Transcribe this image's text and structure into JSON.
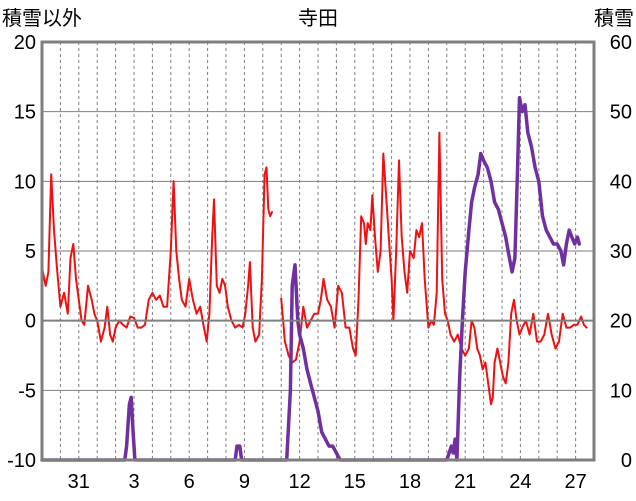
{
  "chart_data": {
    "type": "line",
    "title": "寺田",
    "ylabel_left": "積雪以外",
    "ylabel_right": "積雪",
    "ylim_left": [
      -10,
      20
    ],
    "ylim_right": [
      0,
      60
    ],
    "yticks_left": [
      "20",
      "15",
      "10",
      "5",
      "0",
      "-5",
      "-10"
    ],
    "yticks_right": [
      "60",
      "50",
      "40",
      "30",
      "20",
      "10",
      "0"
    ],
    "xlim": [
      0,
      30
    ],
    "xticks": [
      {
        "day": 2.0,
        "label": "31"
      },
      {
        "day": 5.0,
        "label": "3"
      },
      {
        "day": 8.0,
        "label": "6"
      },
      {
        "day": 11.0,
        "label": "9"
      },
      {
        "day": 14.0,
        "label": "12"
      },
      {
        "day": 17.0,
        "label": "15"
      },
      {
        "day": 20.0,
        "label": "18"
      },
      {
        "day": 23.0,
        "label": "21"
      },
      {
        "day": 26.0,
        "label": "24"
      },
      {
        "day": 29.0,
        "label": "27"
      }
    ],
    "grid": true,
    "legend": "none",
    "colors": {
      "series1": "#ee1111",
      "series2": "#7030a0",
      "zero": "#7f7f7f",
      "frame": "#7f7f7f",
      "grid": "#7f7f7f"
    },
    "series": [
      {
        "axis": "left",
        "color": "#ee1111",
        "points": [
          [
            0.0,
            3.8
          ],
          [
            0.2,
            2.5
          ],
          [
            0.35,
            3.5
          ],
          [
            0.5,
            10.5
          ],
          [
            0.65,
            6.5
          ],
          [
            0.8,
            4.0
          ],
          [
            1.0,
            1.0
          ],
          [
            1.2,
            2.0
          ],
          [
            1.4,
            0.5
          ],
          [
            1.55,
            4.5
          ],
          [
            1.7,
            5.5
          ],
          [
            1.85,
            3.0
          ],
          [
            2.0,
            1.5
          ],
          [
            2.15,
            0.0
          ],
          [
            2.3,
            -0.3
          ],
          [
            2.5,
            2.5
          ],
          [
            2.7,
            1.5
          ],
          [
            2.85,
            0.5
          ],
          [
            3.0,
            0.0
          ],
          [
            3.2,
            -1.5
          ],
          [
            3.4,
            -0.5
          ],
          [
            3.55,
            1.0
          ],
          [
            3.7,
            -1.0
          ],
          [
            3.85,
            -1.5
          ],
          [
            4.0,
            -0.5
          ],
          [
            4.2,
            0.0
          ],
          [
            4.4,
            -0.3
          ],
          [
            4.6,
            -0.5
          ],
          [
            4.8,
            0.3
          ],
          [
            5.0,
            0.2
          ],
          [
            5.2,
            -0.5
          ],
          [
            5.4,
            -0.5
          ],
          [
            5.6,
            -0.3
          ],
          [
            5.8,
            1.5
          ],
          [
            6.0,
            2.0
          ],
          [
            6.2,
            1.5
          ],
          [
            6.4,
            1.8
          ],
          [
            6.6,
            1.0
          ],
          [
            6.8,
            1.0
          ],
          [
            7.0,
            5.0
          ],
          [
            7.15,
            10.0
          ],
          [
            7.3,
            5.0
          ],
          [
            7.45,
            3.0
          ],
          [
            7.6,
            1.5
          ],
          [
            7.8,
            1.0
          ],
          [
            8.0,
            3.0
          ],
          [
            8.2,
            1.5
          ],
          [
            8.4,
            0.5
          ],
          [
            8.6,
            1.0
          ],
          [
            8.8,
            -0.5
          ],
          [
            8.95,
            -1.5
          ],
          [
            9.1,
            0.5
          ],
          [
            9.25,
            6.0
          ],
          [
            9.35,
            8.7
          ],
          [
            9.5,
            2.5
          ],
          [
            9.65,
            2.0
          ],
          [
            9.8,
            3.0
          ],
          [
            9.95,
            2.5
          ],
          [
            10.1,
            1.0
          ],
          [
            10.3,
            0.0
          ],
          [
            10.5,
            -0.5
          ],
          [
            10.7,
            -0.3
          ],
          [
            10.9,
            -0.5
          ],
          [
            11.05,
            0.5
          ],
          [
            11.2,
            2.5
          ],
          [
            11.3,
            4.2
          ],
          [
            11.45,
            -0.5
          ],
          [
            11.6,
            -1.5
          ],
          [
            11.8,
            -1.0
          ],
          [
            11.95,
            3.0
          ],
          [
            12.1,
            10.5
          ],
          [
            12.2,
            11.0
          ],
          [
            12.3,
            8.0
          ],
          [
            12.4,
            7.5
          ],
          [
            12.5,
            7.8
          ]
        ]
      },
      {
        "axis": "left",
        "color": "#ee1111",
        "points": [
          [
            13.0,
            1.6
          ],
          [
            13.2,
            -1.5
          ],
          [
            13.4,
            -2.5
          ],
          [
            13.6,
            -3.0
          ],
          [
            13.8,
            -2.8
          ],
          [
            14.0,
            -1.5
          ],
          [
            14.2,
            1.0
          ],
          [
            14.4,
            -0.5
          ],
          [
            14.6,
            0.0
          ],
          [
            14.8,
            0.5
          ],
          [
            15.0,
            0.5
          ],
          [
            15.15,
            1.5
          ],
          [
            15.3,
            3.0
          ],
          [
            15.5,
            1.5
          ],
          [
            15.7,
            1.0
          ],
          [
            15.9,
            -0.5
          ],
          [
            16.1,
            2.5
          ],
          [
            16.3,
            2.0
          ],
          [
            16.5,
            -0.5
          ],
          [
            16.7,
            -0.5
          ],
          [
            16.9,
            -2.0
          ],
          [
            17.05,
            -2.5
          ],
          [
            17.2,
            1.5
          ],
          [
            17.35,
            7.5
          ],
          [
            17.5,
            7.0
          ],
          [
            17.6,
            5.5
          ],
          [
            17.7,
            7.0
          ],
          [
            17.85,
            6.5
          ],
          [
            17.95,
            9.0
          ],
          [
            18.1,
            6.0
          ],
          [
            18.25,
            3.5
          ],
          [
            18.4,
            5.0
          ],
          [
            18.55,
            12.0
          ],
          [
            18.7,
            9.0
          ],
          [
            18.85,
            6.0
          ],
          [
            19.0,
            3.0
          ],
          [
            19.1,
            0.0
          ],
          [
            19.25,
            5.0
          ],
          [
            19.4,
            11.5
          ],
          [
            19.55,
            6.0
          ],
          [
            19.7,
            3.5
          ],
          [
            19.85,
            2.0
          ],
          [
            20.0,
            5.0
          ],
          [
            20.2,
            4.5
          ],
          [
            20.35,
            6.5
          ],
          [
            20.5,
            6.0
          ],
          [
            20.65,
            7.0
          ],
          [
            20.8,
            3.0
          ],
          [
            21.0,
            -0.5
          ],
          [
            21.15,
            0.0
          ],
          [
            21.3,
            -0.3
          ],
          [
            21.45,
            2.0
          ],
          [
            21.6,
            13.5
          ],
          [
            21.75,
            3.0
          ],
          [
            21.9,
            0.5
          ],
          [
            22.05,
            0.0
          ],
          [
            22.2,
            -1.0
          ],
          [
            22.4,
            -1.5
          ],
          [
            22.6,
            -1.0
          ],
          [
            22.8,
            -2.0
          ],
          [
            23.0,
            -2.5
          ],
          [
            23.2,
            -2.0
          ],
          [
            23.35,
            0.0
          ],
          [
            23.5,
            -0.5
          ],
          [
            23.65,
            -2.0
          ],
          [
            23.8,
            -2.5
          ],
          [
            23.95,
            -3.5
          ],
          [
            24.1,
            -3.0
          ],
          [
            24.25,
            -4.5
          ],
          [
            24.4,
            -6.0
          ],
          [
            24.5,
            -5.5
          ],
          [
            24.6,
            -3.0
          ],
          [
            24.75,
            -2.0
          ],
          [
            24.9,
            -3.0
          ],
          [
            25.05,
            -4.0
          ],
          [
            25.2,
            -4.5
          ],
          [
            25.35,
            -3.0
          ],
          [
            25.5,
            0.5
          ],
          [
            25.65,
            1.5
          ],
          [
            25.8,
            0.0
          ],
          [
            25.95,
            -1.0
          ],
          [
            26.1,
            -0.5
          ],
          [
            26.3,
            0.0
          ],
          [
            26.5,
            -1.0
          ],
          [
            26.7,
            0.5
          ],
          [
            26.9,
            -1.5
          ],
          [
            27.1,
            -1.5
          ],
          [
            27.3,
            -1.0
          ],
          [
            27.5,
            0.5
          ],
          [
            27.7,
            -1.0
          ],
          [
            27.9,
            -2.0
          ],
          [
            28.1,
            -1.5
          ],
          [
            28.3,
            0.5
          ],
          [
            28.5,
            -0.5
          ],
          [
            28.7,
            -0.5
          ],
          [
            28.9,
            -0.3
          ],
          [
            29.1,
            -0.3
          ],
          [
            29.3,
            0.3
          ],
          [
            29.45,
            -0.3
          ],
          [
            29.6,
            -0.5
          ]
        ]
      },
      {
        "axis": "right",
        "color": "#7030a0",
        "points": [
          [
            0.0,
            0
          ],
          [
            4.5,
            0
          ],
          [
            4.6,
            2
          ],
          [
            4.75,
            8
          ],
          [
            4.85,
            9
          ],
          [
            4.95,
            4
          ],
          [
            5.05,
            0
          ],
          [
            10.5,
            0
          ],
          [
            10.6,
            2
          ],
          [
            10.75,
            2
          ],
          [
            10.85,
            0
          ],
          [
            13.3,
            0
          ],
          [
            13.5,
            10
          ],
          [
            13.6,
            25
          ],
          [
            13.75,
            28
          ],
          [
            13.9,
            20
          ],
          [
            14.0,
            18
          ],
          [
            14.2,
            16
          ],
          [
            14.4,
            13
          ],
          [
            14.6,
            11
          ],
          [
            14.8,
            9
          ],
          [
            15.0,
            7
          ],
          [
            15.2,
            4
          ],
          [
            15.4,
            3
          ],
          [
            15.6,
            2
          ],
          [
            15.8,
            2
          ],
          [
            16.0,
            1
          ],
          [
            16.2,
            0
          ],
          [
            22.0,
            0
          ],
          [
            22.25,
            2
          ],
          [
            22.35,
            1
          ],
          [
            22.45,
            3
          ],
          [
            22.55,
            0
          ],
          [
            22.7,
            12
          ],
          [
            22.85,
            20
          ],
          [
            23.0,
            27
          ],
          [
            23.2,
            33
          ],
          [
            23.35,
            37
          ],
          [
            23.5,
            39
          ],
          [
            23.7,
            41
          ],
          [
            23.85,
            44
          ],
          [
            24.0,
            43
          ],
          [
            24.2,
            42
          ],
          [
            24.4,
            40
          ],
          [
            24.6,
            37
          ],
          [
            24.8,
            36
          ],
          [
            25.0,
            34
          ],
          [
            25.2,
            32
          ],
          [
            25.4,
            29
          ],
          [
            25.55,
            27
          ],
          [
            25.7,
            29
          ],
          [
            25.85,
            42
          ],
          [
            25.95,
            52
          ],
          [
            26.1,
            50
          ],
          [
            26.25,
            51
          ],
          [
            26.4,
            47
          ],
          [
            26.6,
            45
          ],
          [
            26.8,
            42
          ],
          [
            27.0,
            40
          ],
          [
            27.2,
            35
          ],
          [
            27.4,
            33
          ],
          [
            27.6,
            32
          ],
          [
            27.8,
            31
          ],
          [
            28.0,
            31
          ],
          [
            28.2,
            30
          ],
          [
            28.35,
            28
          ],
          [
            28.5,
            31
          ],
          [
            28.65,
            33
          ],
          [
            28.8,
            32
          ],
          [
            28.95,
            31
          ],
          [
            29.1,
            32
          ],
          [
            29.2,
            31
          ]
        ]
      }
    ]
  }
}
